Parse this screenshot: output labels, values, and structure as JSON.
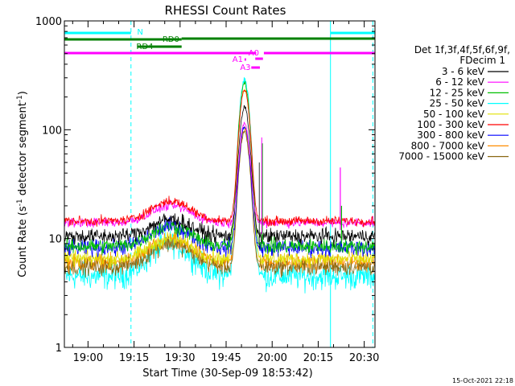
{
  "chart_data": {
    "type": "line",
    "title": "RHESSI Count Rates",
    "xlabel": "Start Time (30-Sep-09 18:53:42)",
    "ylabel_main": "Count Rate (s",
    "ylabel_sup1": "-1",
    "ylabel_mid": " detector segment",
    "ylabel_sup2": "-1",
    "ylabel_end": ")",
    "y_scale": "log",
    "ylim": [
      1,
      1000
    ],
    "y_ticks": [
      {
        "value": 1,
        "label": "1"
      },
      {
        "value": 10,
        "label": "10"
      },
      {
        "value": 100,
        "label": "100"
      },
      {
        "value": 1000,
        "label": "1000"
      }
    ],
    "xlim_minutes": [
      -7.7,
      93.5
    ],
    "x_ticks": [
      {
        "t": 0,
        "label": "19:00"
      },
      {
        "t": 15,
        "label": "19:15"
      },
      {
        "t": 30,
        "label": "19:30"
      },
      {
        "t": 45,
        "label": "19:45"
      },
      {
        "t": 60,
        "label": "20:00"
      },
      {
        "t": 75,
        "label": "20:15"
      },
      {
        "t": 90,
        "label": "20:30"
      }
    ],
    "legend_header": [
      "Det 1f,3f,4f,5f,6f,9f,",
      "FDecim 1"
    ],
    "series": [
      {
        "name": "3 - 6 keV",
        "color": "#000000",
        "base": 10.5,
        "hump": 15,
        "peak": 150,
        "noise": 0.08
      },
      {
        "name": "6 - 12 keV",
        "color": "#ff00ff",
        "base": 14,
        "hump": 20,
        "peak": 100,
        "noise": 0.05
      },
      {
        "name": "12 - 25 keV",
        "color": "#00c000",
        "base": 8.5,
        "hump": 13,
        "peak": 260,
        "noise": 0.08
      },
      {
        "name": "25 - 50 keV",
        "color": "#00ffff",
        "base": 4.5,
        "hump": 9,
        "peak": 280,
        "noise": 0.14
      },
      {
        "name": "50 - 100 keV",
        "color": "#e0e000",
        "base": 6.5,
        "hump": 10,
        "peak": 230,
        "noise": 0.08
      },
      {
        "name": "100 - 300 keV",
        "color": "#ff0000",
        "base": 14.5,
        "hump": 22,
        "peak": 220,
        "noise": 0.05
      },
      {
        "name": "300 - 800 keV",
        "color": "#0000ff",
        "base": 8.2,
        "hump": 13,
        "peak": 100,
        "noise": 0.09
      },
      {
        "name": "800 - 7000 keV",
        "color": "#ff8c00",
        "base": 6,
        "hump": 9.5,
        "peak": 95,
        "noise": 0.09
      },
      {
        "name": "7000 - 15000 keV",
        "color": "#8b6914",
        "base": 5.5,
        "hump": 9,
        "peak": 90,
        "noise": 0.09
      }
    ],
    "flare_peak_time": "19:51",
    "state_bars": [
      {
        "name": "night",
        "label": "N",
        "color": "#00ffff",
        "segments": [
          [
            -7.7,
            14
          ],
          [
            79,
            93.5
          ]
        ]
      },
      {
        "name": "rd0",
        "label": "RD0",
        "color": "#008000",
        "segments": [
          [
            -7.7,
            30.5
          ],
          [
            30.5,
            93.5
          ]
        ]
      },
      {
        "name": "rd4",
        "label": "RD4",
        "color": "#008000",
        "segments": [
          [
            16,
            30.5
          ]
        ]
      },
      {
        "name": "a0",
        "label": "A0",
        "color": "#ff00ff",
        "segments": [
          [
            -7.7,
            54.8
          ],
          [
            57.3,
            93.5
          ]
        ]
      },
      {
        "name": "a1",
        "label": "A1",
        "color": "#ff00ff",
        "segments": [
          [
            51,
            51.5
          ],
          [
            54.5,
            57
          ]
        ]
      },
      {
        "name": "a3",
        "label": "A3",
        "color": "#ff00ff",
        "segments": [
          [
            53.2,
            56
          ]
        ]
      }
    ],
    "vertical_markers": [
      {
        "t": -7.7,
        "style": "solid",
        "color": "#00ffff"
      },
      {
        "t": 14,
        "style": "dashed",
        "color": "#00ffff"
      },
      {
        "t": 79,
        "style": "solid",
        "color": "#00ffff"
      },
      {
        "t": 92.8,
        "style": "dashed",
        "color": "#00ffff"
      }
    ],
    "timestamp": "15-Oct-2021 22:18"
  }
}
